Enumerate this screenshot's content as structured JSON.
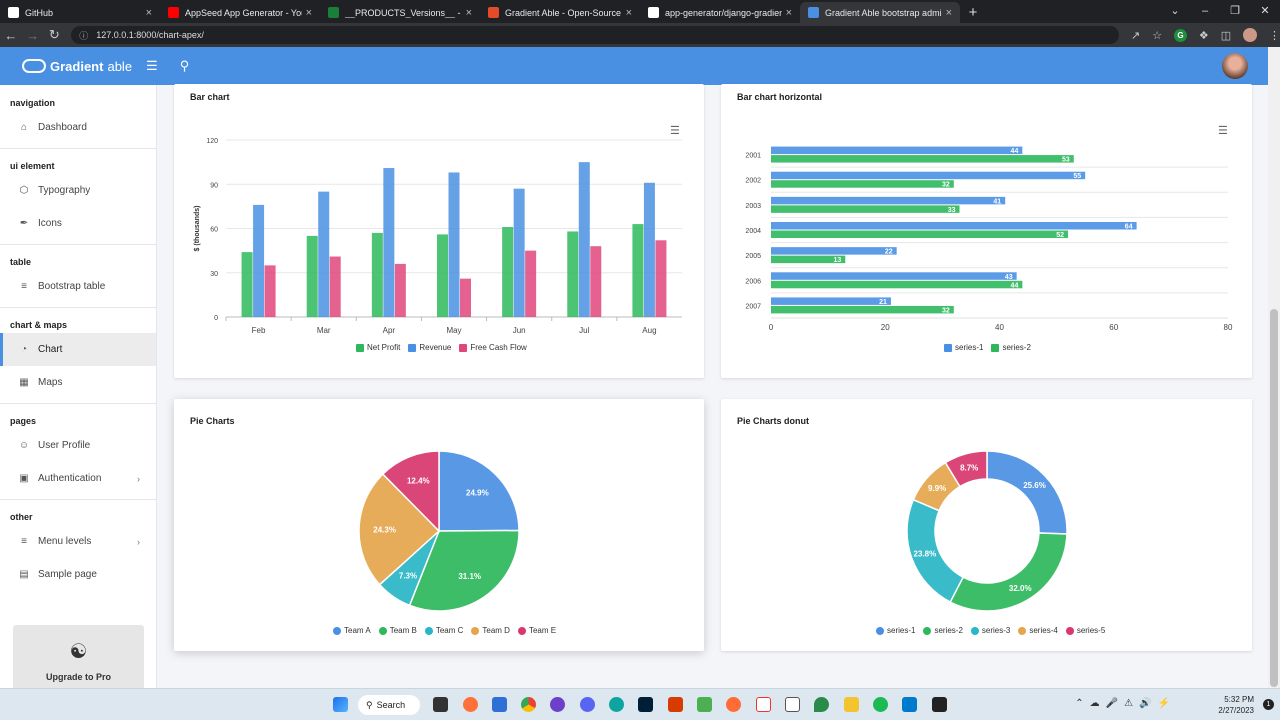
{
  "browser": {
    "tabs": [
      {
        "title": "GitHub",
        "color": "#ffffff"
      },
      {
        "title": "AppSeed App Generator - YouTube",
        "color": "#ff0000"
      },
      {
        "title": "__PRODUCTS_Versions__ - Google Sheets",
        "color": "#188038"
      },
      {
        "title": "Gradient Able - Open-Source Django",
        "color": "#e34c26"
      },
      {
        "title": "app-generator/django-gradient-able",
        "color": "#ffffff"
      },
      {
        "title": "Gradient Able bootstrap admin template",
        "color": "#4a90e2"
      }
    ],
    "url": "127.0.0.1:8000/chart-apex/"
  },
  "app": {
    "brand_bold": "Gradient",
    "brand_light": "able"
  },
  "sidebar": {
    "sections": [
      {
        "label": "navigation",
        "items": [
          {
            "label": "Dashboard",
            "icon": "home-icon"
          }
        ]
      },
      {
        "label": "ui element",
        "items": [
          {
            "label": "Typography",
            "icon": "box-icon"
          },
          {
            "label": "Icons",
            "icon": "feather-icon"
          }
        ]
      },
      {
        "label": "table",
        "items": [
          {
            "label": "Bootstrap table",
            "icon": "list-icon"
          }
        ]
      },
      {
        "label": "chart & maps",
        "items": [
          {
            "label": "Chart",
            "icon": "pie-chart-icon",
            "active": true
          },
          {
            "label": "Maps",
            "icon": "map-icon"
          }
        ]
      },
      {
        "label": "pages",
        "items": [
          {
            "label": "User Profile",
            "icon": "user-icon"
          },
          {
            "label": "Authentication",
            "icon": "lock-icon",
            "chevron": true
          }
        ]
      },
      {
        "label": "other",
        "items": [
          {
            "label": "Menu levels",
            "icon": "menu-icon",
            "chevron": true
          },
          {
            "label": "Sample page",
            "icon": "sidebar-icon"
          }
        ]
      }
    ],
    "upgrade": "Upgrade to Pro"
  },
  "cards": {
    "bar": "Bar chart",
    "hbar": "Bar chart horizontal",
    "pie": "Pie Charts",
    "donut": "Pie Charts donut"
  },
  "chart_data": [
    {
      "type": "bar",
      "title": "Bar chart",
      "ylabel": "$ (thousands)",
      "ylim": [
        0,
        120
      ],
      "yticks": [
        0,
        30,
        60,
        90,
        120
      ],
      "categories": [
        "Feb",
        "Mar",
        "Apr",
        "May",
        "Jun",
        "Jul",
        "Aug"
      ],
      "series": [
        {
          "name": "Net Profit",
          "color": "#2eb85c",
          "values": [
            44,
            55,
            57,
            56,
            61,
            58,
            63
          ]
        },
        {
          "name": "Revenue",
          "color": "#4a90e2",
          "values": [
            76,
            85,
            101,
            98,
            87,
            105,
            91
          ]
        },
        {
          "name": "Free Cash Flow",
          "color": "#e0457b",
          "values": [
            35,
            41,
            36,
            26,
            45,
            48,
            52
          ]
        }
      ]
    },
    {
      "type": "bar",
      "orientation": "horizontal",
      "title": "Bar chart horizontal",
      "xlim": [
        0,
        80
      ],
      "xticks": [
        0,
        20,
        40,
        60,
        80
      ],
      "categories": [
        "2001",
        "2002",
        "2003",
        "2004",
        "2005",
        "2006",
        "2007"
      ],
      "series": [
        {
          "name": "series-1",
          "color": "#4a90e2",
          "values": [
            44,
            55,
            41,
            64,
            22,
            43,
            21
          ]
        },
        {
          "name": "series-2",
          "color": "#2eb85c",
          "values": [
            53,
            32,
            33,
            52,
            13,
            44,
            32
          ]
        }
      ]
    },
    {
      "type": "pie",
      "title": "Pie Charts",
      "labels": [
        "Team A",
        "Team B",
        "Team C",
        "Team D",
        "Team E"
      ],
      "values": [
        24.9,
        31.1,
        7.3,
        24.3,
        12.4
      ],
      "colors": [
        "#4a90e2",
        "#2eb85c",
        "#29b6c6",
        "#e5a54b",
        "#d9376e"
      ]
    },
    {
      "type": "pie",
      "variant": "donut",
      "title": "Pie Charts donut",
      "labels": [
        "series-1",
        "series-2",
        "series-3",
        "series-4",
        "series-5"
      ],
      "values": [
        25.6,
        32.0,
        23.8,
        9.9,
        8.7
      ],
      "colors": [
        "#4a90e2",
        "#2eb85c",
        "#29b6c6",
        "#e5a54b",
        "#d9376e"
      ]
    }
  ],
  "taskbar": {
    "search": "Search",
    "time": "5:32 PM",
    "date": "2/27/2023"
  }
}
